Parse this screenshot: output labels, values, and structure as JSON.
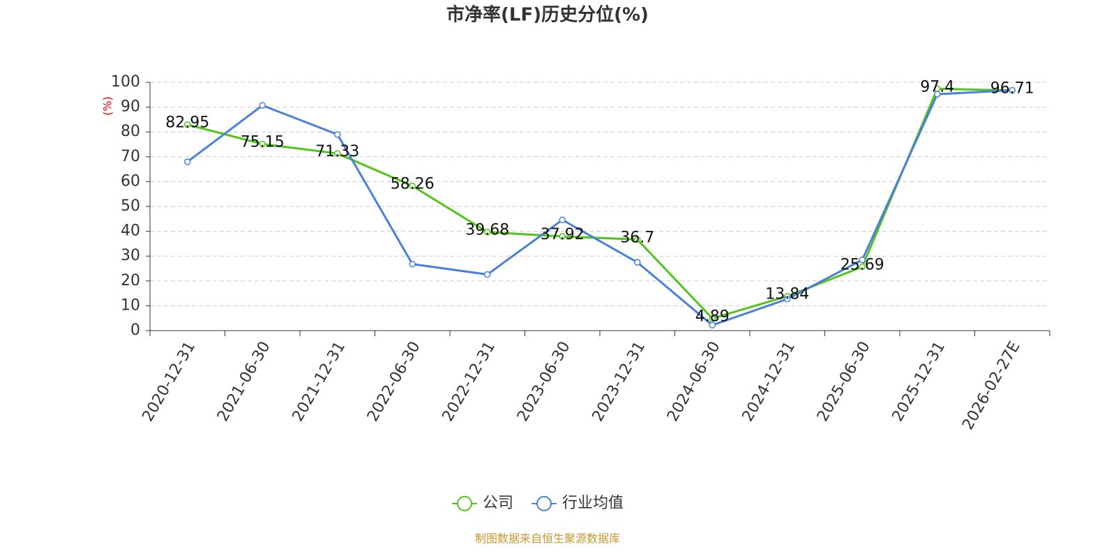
{
  "chart_data": {
    "type": "line",
    "title": "市净率(LF)历史分位(%)",
    "y_label": "(%)",
    "categories": [
      "2020-12-31",
      "2021-06-30",
      "2021-12-31",
      "2022-06-30",
      "2022-12-31",
      "2023-06-30",
      "2023-12-31",
      "2024-06-30",
      "2024-12-31",
      "2025-06-30",
      "2025-12-31",
      "2026-02-27E"
    ],
    "series": [
      {
        "name": "公司",
        "color": "#52c41a",
        "data_labels": true,
        "values": [
          82.95,
          75.15,
          71.33,
          58.26,
          39.68,
          37.92,
          36.7,
          4.89,
          13.84,
          25.69,
          97.4,
          96.71
        ]
      },
      {
        "name": "行业均值",
        "color": "#4a7fdc",
        "data_labels": false,
        "values": [
          68,
          90.7,
          79,
          26.8,
          22.6,
          44.6,
          27.5,
          2.2,
          12.7,
          28.5,
          95.2,
          96.8
        ]
      }
    ],
    "ylim": [
      0,
      100
    ],
    "yticks": [
      0,
      10,
      20,
      30,
      40,
      50,
      60,
      70,
      80,
      90,
      100
    ],
    "grid": true,
    "source": "制图数据来自恒生聚源数据库"
  }
}
